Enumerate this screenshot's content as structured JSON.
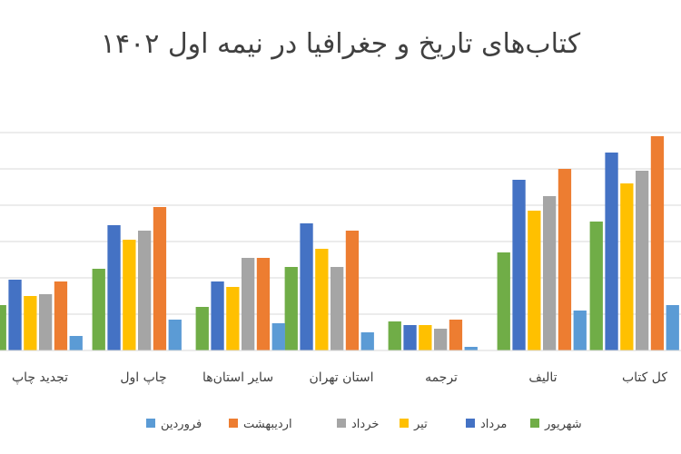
{
  "chart_data": {
    "type": "bar",
    "title": "کتاب‌های تاریخ و جغرافیا در نیمه اول ۱۴۰۲",
    "categories": [
      "کل کتاب",
      "تالیف",
      "ترجمه",
      "استان تهران",
      "سایر استان‌ها",
      "چاپ اول",
      "تجدید چاپ"
    ],
    "series": [
      {
        "name": "فروردین",
        "color": "#5B9BD5",
        "values": [
          25,
          22,
          2,
          10,
          15,
          17,
          8
        ]
      },
      {
        "name": "اردیبهشت",
        "color": "#ED7D31",
        "values": [
          118,
          100,
          17,
          66,
          51,
          79,
          38
        ]
      },
      {
        "name": "خرداد",
        "color": "#A5A5A5",
        "values": [
          99,
          85,
          12,
          46,
          51,
          66,
          31
        ]
      },
      {
        "name": "تیر",
        "color": "#FFC000",
        "values": [
          92,
          77,
          14,
          56,
          35,
          61,
          30
        ]
      },
      {
        "name": "مرداد",
        "color": "#4472C4",
        "values": [
          109,
          94,
          14,
          70,
          38,
          69,
          39
        ]
      },
      {
        "name": "شهریور",
        "color": "#70AD47",
        "values": [
          71,
          54,
          16,
          46,
          24,
          45,
          25
        ]
      }
    ],
    "ylim": [
      0,
      125
    ],
    "grid": true,
    "legend": "bottom"
  }
}
